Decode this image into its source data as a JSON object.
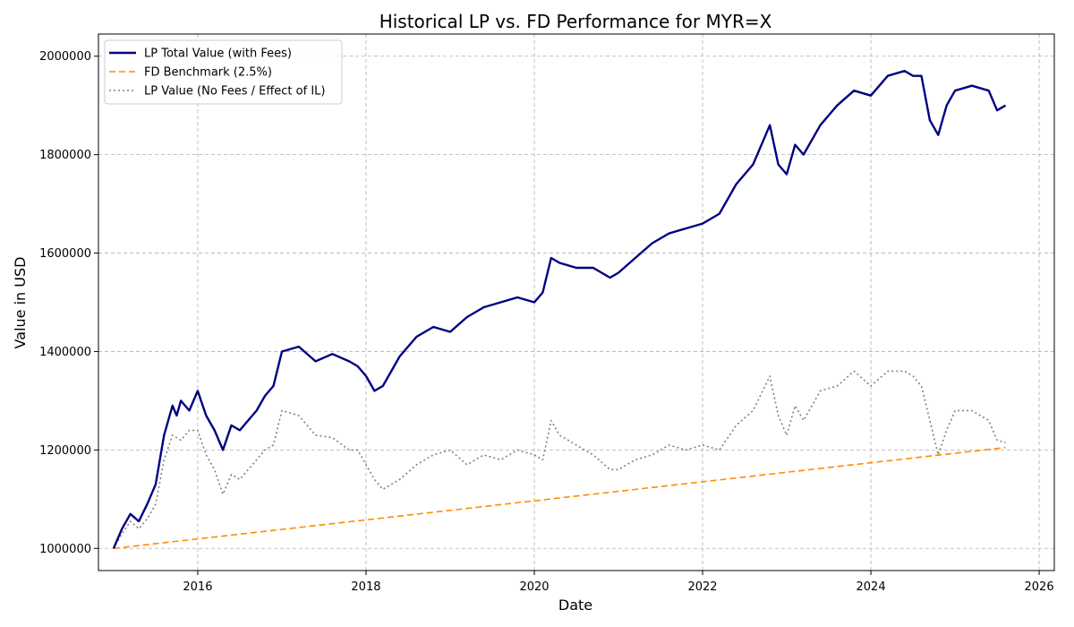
{
  "chart_data": {
    "type": "line",
    "title": "Historical LP vs. FD Performance for MYR=X",
    "xlabel": "Date",
    "ylabel": "Value in USD",
    "xlim": [
      2014.82,
      2026.18
    ],
    "ylim": [
      955000,
      2045000
    ],
    "x_ticks": [
      2016,
      2018,
      2020,
      2022,
      2024,
      2026
    ],
    "x_tick_labels": [
      "2016",
      "2018",
      "2020",
      "2022",
      "2024",
      "2026"
    ],
    "y_ticks": [
      1000000,
      1200000,
      1400000,
      1600000,
      1800000,
      2000000
    ],
    "y_tick_labels": [
      "1000000",
      "1200000",
      "1400000",
      "1600000",
      "1800000",
      "2000000"
    ],
    "grid": true,
    "legend_position": "top-left",
    "series": [
      {
        "name": "LP Total Value (with Fees)",
        "color": "#000080",
        "style": "solid",
        "x": [
          2015.0,
          2015.1,
          2015.2,
          2015.3,
          2015.4,
          2015.5,
          2015.6,
          2015.7,
          2015.75,
          2015.8,
          2015.9,
          2016.0,
          2016.1,
          2016.2,
          2016.3,
          2016.4,
          2016.5,
          2016.6,
          2016.7,
          2016.8,
          2016.9,
          2017.0,
          2017.2,
          2017.4,
          2017.6,
          2017.8,
          2017.9,
          2018.0,
          2018.1,
          2018.2,
          2018.4,
          2018.6,
          2018.8,
          2019.0,
          2019.2,
          2019.4,
          2019.6,
          2019.8,
          2020.0,
          2020.1,
          2020.2,
          2020.3,
          2020.5,
          2020.7,
          2020.9,
          2021.0,
          2021.2,
          2021.4,
          2021.6,
          2021.8,
          2022.0,
          2022.2,
          2022.4,
          2022.6,
          2022.8,
          2022.9,
          2023.0,
          2023.1,
          2023.2,
          2023.4,
          2023.6,
          2023.8,
          2024.0,
          2024.2,
          2024.4,
          2024.5,
          2024.6,
          2024.7,
          2024.8,
          2024.9,
          2025.0,
          2025.2,
          2025.4,
          2025.5,
          2025.6
        ],
        "y": [
          1000000,
          1040000,
          1070000,
          1055000,
          1090000,
          1130000,
          1230000,
          1290000,
          1270000,
          1300000,
          1280000,
          1320000,
          1270000,
          1240000,
          1200000,
          1250000,
          1240000,
          1260000,
          1280000,
          1310000,
          1330000,
          1400000,
          1410000,
          1380000,
          1395000,
          1380000,
          1370000,
          1350000,
          1320000,
          1330000,
          1390000,
          1430000,
          1450000,
          1440000,
          1470000,
          1490000,
          1500000,
          1510000,
          1500000,
          1520000,
          1590000,
          1580000,
          1570000,
          1570000,
          1550000,
          1560000,
          1590000,
          1620000,
          1640000,
          1650000,
          1660000,
          1680000,
          1740000,
          1780000,
          1860000,
          1780000,
          1760000,
          1820000,
          1800000,
          1860000,
          1900000,
          1930000,
          1920000,
          1960000,
          1970000,
          1960000,
          1960000,
          1870000,
          1840000,
          1900000,
          1930000,
          1940000,
          1930000,
          1890000,
          1900000
        ]
      },
      {
        "name": "FD Benchmark (2.5%)",
        "color": "#ff8c00",
        "style": "dashed",
        "x": [
          2015.0,
          2025.6
        ],
        "y": [
          1000000,
          1205000
        ]
      },
      {
        "name": "LP Value (No Fees / Effect of IL)",
        "color": "#808080",
        "style": "dotted",
        "x": [
          2015.0,
          2015.1,
          2015.2,
          2015.3,
          2015.4,
          2015.5,
          2015.6,
          2015.7,
          2015.8,
          2015.9,
          2016.0,
          2016.1,
          2016.2,
          2016.3,
          2016.4,
          2016.5,
          2016.6,
          2016.7,
          2016.8,
          2016.9,
          2017.0,
          2017.2,
          2017.4,
          2017.6,
          2017.8,
          2017.9,
          2018.0,
          2018.1,
          2018.2,
          2018.4,
          2018.6,
          2018.8,
          2019.0,
          2019.2,
          2019.4,
          2019.6,
          2019.8,
          2020.0,
          2020.1,
          2020.2,
          2020.3,
          2020.5,
          2020.7,
          2020.9,
          2021.0,
          2021.2,
          2021.4,
          2021.6,
          2021.8,
          2022.0,
          2022.2,
          2022.4,
          2022.6,
          2022.8,
          2022.9,
          2023.0,
          2023.1,
          2023.2,
          2023.4,
          2023.6,
          2023.8,
          2024.0,
          2024.2,
          2024.4,
          2024.5,
          2024.6,
          2024.7,
          2024.8,
          2024.9,
          2025.0,
          2025.2,
          2025.4,
          2025.5,
          2025.6
        ],
        "y": [
          1000000,
          1030000,
          1055000,
          1040000,
          1060000,
          1090000,
          1180000,
          1230000,
          1220000,
          1240000,
          1240000,
          1190000,
          1160000,
          1110000,
          1150000,
          1140000,
          1160000,
          1180000,
          1200000,
          1210000,
          1280000,
          1270000,
          1230000,
          1225000,
          1200000,
          1200000,
          1170000,
          1140000,
          1120000,
          1140000,
          1170000,
          1190000,
          1200000,
          1170000,
          1190000,
          1180000,
          1200000,
          1190000,
          1180000,
          1260000,
          1230000,
          1210000,
          1190000,
          1160000,
          1160000,
          1180000,
          1190000,
          1210000,
          1200000,
          1210000,
          1200000,
          1250000,
          1280000,
          1350000,
          1270000,
          1230000,
          1290000,
          1260000,
          1320000,
          1330000,
          1360000,
          1330000,
          1360000,
          1360000,
          1350000,
          1330000,
          1260000,
          1190000,
          1240000,
          1280000,
          1280000,
          1260000,
          1220000,
          1215000
        ]
      }
    ]
  }
}
